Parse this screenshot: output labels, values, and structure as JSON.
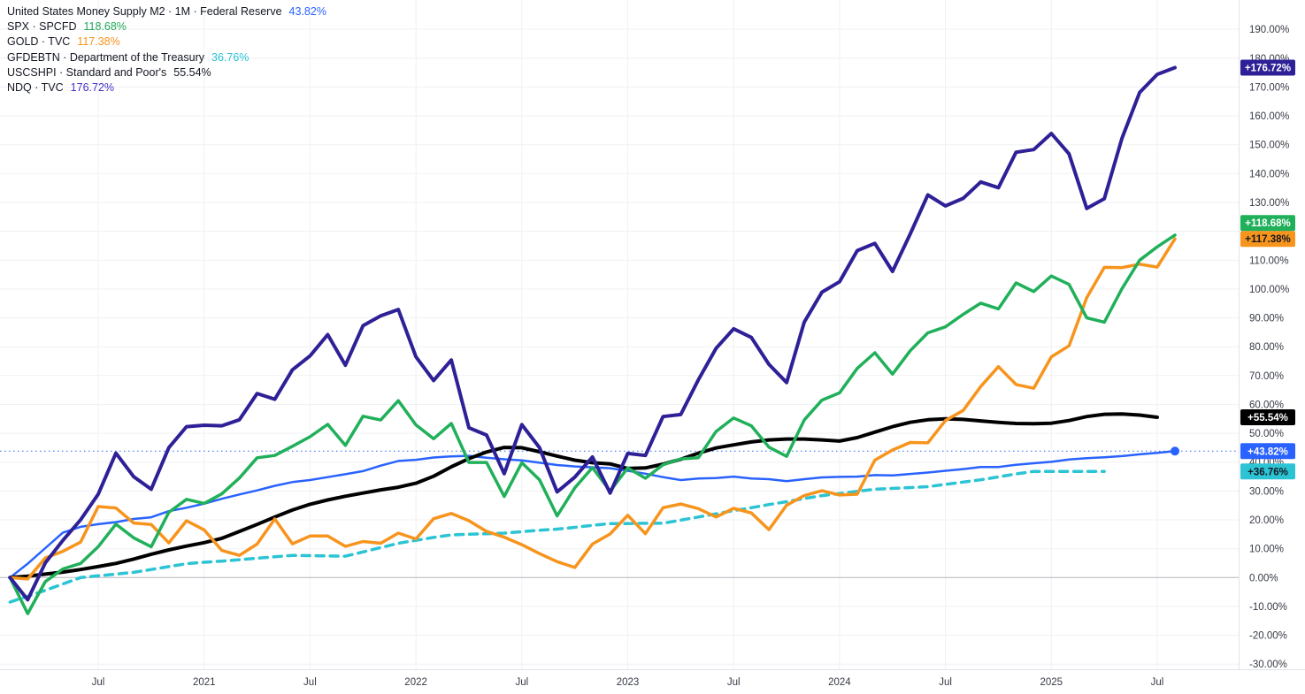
{
  "legend": {
    "rows": [
      {
        "label": "United States Money Supply M2 · 1M · Federal Reserve",
        "value": "43.82%",
        "value_color": "#2962ff"
      },
      {
        "label": "SPX · SPCFD",
        "value": "118.68%",
        "value_color": "#1fa85a"
      },
      {
        "label": "GOLD · TVC",
        "value": "117.38%",
        "value_color": "#f7941d"
      },
      {
        "label": "GFDEBTN · Department of the Treasury",
        "value": "36.76%",
        "value_color": "#2cc4d4"
      },
      {
        "label": "USCSHPI · Standard and Poor's",
        "value": "55.54%",
        "value_color": "#131722"
      },
      {
        "label": "NDQ · TVC",
        "value": "176.72%",
        "value_color": "#4231cc"
      }
    ]
  },
  "chart_data": {
    "type": "line",
    "y_axis": {
      "min": -30,
      "max": 190,
      "step": 10,
      "unit": "%",
      "grid": true,
      "side": "right"
    },
    "price_line": {
      "value": 43.82,
      "color": "#2962ff",
      "style": "dotted"
    },
    "x_ticks": [
      {
        "i": 5,
        "label": "Jul"
      },
      {
        "i": 11,
        "label": "2021"
      },
      {
        "i": 17,
        "label": "Jul"
      },
      {
        "i": 23,
        "label": "2022"
      },
      {
        "i": 29,
        "label": "Jul"
      },
      {
        "i": 35,
        "label": "2023"
      },
      {
        "i": 41,
        "label": "Jul"
      },
      {
        "i": 47,
        "label": "2024"
      },
      {
        "i": 53,
        "label": "Jul"
      },
      {
        "i": 59,
        "label": "2025"
      },
      {
        "i": 65,
        "label": "Jul"
      }
    ],
    "months": [
      "Feb 2020",
      "Mar 2020",
      "Apr 2020",
      "May 2020",
      "Jun 2020",
      "Jul 2020",
      "Aug 2020",
      "Sep 2020",
      "Oct 2020",
      "Nov 2020",
      "Dec 2020",
      "Jan 2021",
      "Feb 2021",
      "Mar 2021",
      "Apr 2021",
      "May 2021",
      "Jun 2021",
      "Jul 2021",
      "Aug 2021",
      "Sep 2021",
      "Oct 2021",
      "Nov 2021",
      "Dec 2021",
      "Jan 2022",
      "Feb 2022",
      "Mar 2022",
      "Apr 2022",
      "May 2022",
      "Jun 2022",
      "Jul 2022",
      "Aug 2022",
      "Sep 2022",
      "Oct 2022",
      "Nov 2022",
      "Dec 2022",
      "Jan 2023",
      "Feb 2023",
      "Mar 2023",
      "Apr 2023",
      "May 2023",
      "Jun 2023",
      "Jul 2023",
      "Aug 2023",
      "Sep 2023",
      "Oct 2023",
      "Nov 2023",
      "Dec 2023",
      "Jan 2024",
      "Feb 2024",
      "Mar 2024",
      "Apr 2024",
      "May 2024",
      "Jun 2024",
      "Jul 2024",
      "Aug 2024",
      "Sep 2024",
      "Oct 2024",
      "Nov 2024",
      "Dec 2024",
      "Jan 2025",
      "Feb 2025",
      "Mar 2025",
      "Apr 2025",
      "May 2025",
      "Jun 2025",
      "Jul 2025",
      "Aug 2025",
      "Sep 2025"
    ],
    "draw_order": [
      "m2",
      "gfdebtn",
      "uscshpi",
      "gold",
      "spx",
      "ndq"
    ],
    "series": [
      {
        "id": "m2",
        "name": "United States Money Supply M2 · 1M · Federal Reserve",
        "color": "#2962ff",
        "width": 2.5,
        "badge": "+43.82%",
        "badge_text": "#ffffff",
        "end_marker": true,
        "values": [
          0,
          4.8,
          10.2,
          15.6,
          17.6,
          18.5,
          19.2,
          20.3,
          20.9,
          23.0,
          24.2,
          25.6,
          27.3,
          28.8,
          30.2,
          31.8,
          33.1,
          33.8,
          34.8,
          35.8,
          36.9,
          38.8,
          40.4,
          40.8,
          41.6,
          42.0,
          42.2,
          41.5,
          41.0,
          40.6,
          39.8,
          39.0,
          38.5,
          38.2,
          37.9,
          37.0,
          36.0,
          34.8,
          33.8,
          34.3,
          34.5,
          35.0,
          34.3,
          34.1,
          33.4,
          34.1,
          34.7,
          34.9,
          35.0,
          35.5,
          35.4,
          35.9,
          36.4,
          37.0,
          37.6,
          38.3,
          38.3,
          39.1,
          39.6,
          40.1,
          40.9,
          41.4,
          41.7,
          42.1,
          42.7,
          43.2,
          43.82,
          null
        ]
      },
      {
        "id": "gfdebtn",
        "name": "GFDEBTN · Department of the Treasury",
        "color": "#2cc4d4",
        "width": 3.5,
        "dash": "9 7",
        "badge": "+36.76%",
        "badge_text": "#131722",
        "values": [
          -8.5,
          -6.5,
          -4.4,
          -2.2,
          0.0,
          0.6,
          1.2,
          1.8,
          2.8,
          3.8,
          4.8,
          5.3,
          5.7,
          6.2,
          6.7,
          7.2,
          7.7,
          7.6,
          7.5,
          7.4,
          8.9,
          10.4,
          11.9,
          12.9,
          13.9,
          14.8,
          15.0,
          15.2,
          15.4,
          15.9,
          16.4,
          16.8,
          17.4,
          18.1,
          18.7,
          18.7,
          18.8,
          18.8,
          19.9,
          21.0,
          22.1,
          23.2,
          24.2,
          25.3,
          26.3,
          27.4,
          28.4,
          29.1,
          29.9,
          30.6,
          30.9,
          31.2,
          31.5,
          32.3,
          33.1,
          33.9,
          34.9,
          35.9,
          36.8,
          36.8,
          36.8,
          36.8,
          36.76,
          null,
          null,
          null,
          null,
          null
        ]
      },
      {
        "id": "uscshpi",
        "name": "USCSHPI · Standard and Poor's",
        "color": "#000000",
        "width": 4,
        "badge": "+55.54%",
        "badge_text": "#ffffff",
        "values": [
          0,
          0.5,
          1.2,
          1.9,
          2.8,
          3.8,
          4.9,
          6.4,
          8.1,
          9.6,
          10.9,
          12.1,
          13.6,
          16.0,
          18.4,
          21.0,
          23.4,
          25.4,
          26.9,
          28.2,
          29.3,
          30.4,
          31.3,
          32.7,
          35.1,
          38.4,
          41.2,
          43.5,
          45.1,
          45.0,
          43.6,
          42.1,
          40.7,
          39.8,
          39.4,
          37.8,
          38.0,
          39.3,
          41.0,
          43.1,
          44.9,
          46.0,
          47.0,
          47.7,
          48.0,
          48.0,
          47.7,
          47.3,
          48.5,
          50.4,
          52.3,
          53.8,
          54.7,
          55.0,
          54.8,
          54.3,
          53.8,
          53.4,
          53.3,
          53.5,
          54.4,
          55.8,
          56.6,
          56.7,
          56.3,
          55.54,
          null,
          null
        ]
      },
      {
        "id": "gold",
        "name": "GOLD · TVC",
        "color": "#f7941d",
        "width": 3.5,
        "badge": "+117.38%",
        "badge_text": "#131722",
        "values": [
          0,
          -0.5,
          6.8,
          9.1,
          12.3,
          24.6,
          24.1,
          18.9,
          18.4,
          12.0,
          19.7,
          16.5,
          9.4,
          7.7,
          11.6,
          20.3,
          11.7,
          14.4,
          14.4,
          10.8,
          12.5,
          11.9,
          15.4,
          13.4,
          20.4,
          22.2,
          19.7,
          16.0,
          14.0,
          11.4,
          8.3,
          5.5,
          3.5,
          11.6,
          15.1,
          21.6,
          15.2,
          24.2,
          25.5,
          23.9,
          21.0,
          24.0,
          22.4,
          16.6,
          25.1,
          28.4,
          30.1,
          28.6,
          28.9,
          40.7,
          44.2,
          46.8,
          46.7,
          54.4,
          57.9,
          66.2,
          73.1,
          66.9,
          65.6,
          76.5,
          80.3,
          97.0,
          107.5,
          107.4,
          108.6,
          107.6,
          117.38,
          null
        ]
      },
      {
        "id": "spx",
        "name": "SPX · SPCFD",
        "color": "#20b05a",
        "width": 3.5,
        "badge": "+118.68%",
        "badge_text": "#ffffff",
        "values": [
          0,
          -12.5,
          -1.4,
          3.0,
          4.9,
          10.7,
          18.5,
          13.8,
          10.7,
          22.6,
          27.1,
          25.7,
          29.0,
          34.5,
          41.5,
          42.3,
          45.5,
          48.8,
          53.1,
          45.8,
          55.9,
          54.6,
          61.3,
          52.9,
          48.1,
          53.4,
          39.9,
          39.9,
          28.1,
          39.8,
          33.9,
          21.4,
          31.1,
          38.1,
          30.0,
          38.0,
          34.4,
          39.1,
          41.1,
          41.5,
          50.6,
          55.3,
          52.6,
          45.2,
          42.0,
          54.6,
          61.5,
          64.0,
          72.5,
          77.9,
          70.5,
          78.6,
          84.8,
          86.9,
          91.2,
          95.1,
          93.1,
          102.1,
          99.1,
          104.5,
          101.6,
          90.0,
          88.5,
          100.1,
          110.0,
          114.6,
          118.68,
          null
        ]
      },
      {
        "id": "ndq",
        "name": "NDQ · TVC",
        "color": "#2e2096",
        "width": 4,
        "badge": "+176.72%",
        "badge_text": "#ffffff",
        "values": [
          0,
          -7.7,
          5.1,
          12.9,
          20.0,
          28.9,
          43.1,
          35.0,
          30.6,
          45.0,
          52.3,
          52.8,
          52.6,
          54.7,
          63.8,
          61.8,
          72.0,
          76.8,
          84.2,
          73.6,
          87.3,
          90.7,
          92.9,
          76.5,
          68.3,
          75.4,
          51.9,
          49.4,
          36.0,
          53.0,
          45.0,
          29.7,
          34.8,
          41.8,
          29.3,
          43.0,
          42.3,
          55.8,
          56.5,
          68.5,
          79.4,
          86.2,
          83.2,
          73.9,
          67.6,
          88.5,
          98.9,
          102.5,
          113.3,
          115.8,
          106.1,
          119.1,
          132.6,
          128.8,
          131.4,
          137.1,
          135.1,
          147.4,
          148.3,
          153.9,
          146.8,
          127.9,
          131.3,
          152.2,
          168.1,
          174.4,
          176.72,
          null
        ]
      }
    ]
  },
  "colors": {
    "background": "#ffffff",
    "grid": "#f0f1f4",
    "zero_line": "#b2b5be",
    "axis_border": "#e0e3eb",
    "axis_text": "#363a45",
    "legend_text": "#131722"
  }
}
